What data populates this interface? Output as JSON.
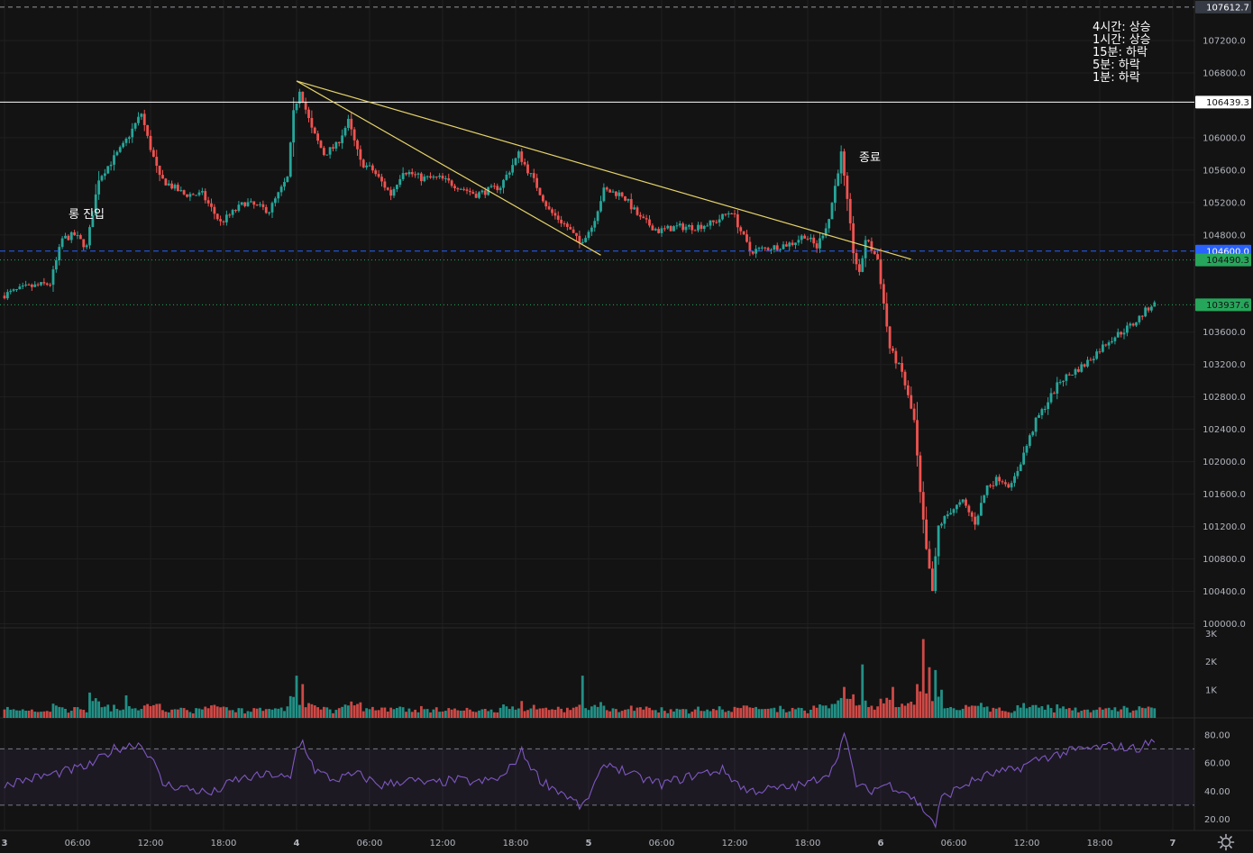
{
  "status_lines": [
    "4시간: 상승",
    "1시간: 상승",
    "15분: 하락",
    "5분: 하락",
    "1분: 하락"
  ],
  "annotations": {
    "entry": "롱 진입",
    "exit": "종료"
  },
  "colors": {
    "background": "#131313",
    "up": "#26a69a",
    "down": "#ef5350",
    "trendline": "#e6d36a",
    "rsi": "#7e57c2",
    "blue_label": "#2962ff",
    "green_label": "#26a65b"
  },
  "chart_data": {
    "type": "candlestick",
    "price_axis": {
      "ticks": [
        "107200.0",
        "106800.0",
        "106000.0",
        "105600.0",
        "105200.0",
        "104800.0",
        "103600.0",
        "103200.0",
        "102800.0",
        "102400.0",
        "102000.0",
        "101600.0",
        "101200.0",
        "100800.0",
        "100400.0",
        "100000.0"
      ],
      "ylim": [
        99950,
        107700
      ]
    },
    "time_axis": {
      "ticks": [
        "3",
        "06:00",
        "12:00",
        "18:00",
        "4",
        "06:00",
        "12:00",
        "18:00",
        "5",
        "06:00",
        "12:00",
        "18:00",
        "6",
        "06:00",
        "12:00",
        "18:00",
        "7"
      ]
    },
    "price_lines": [
      {
        "value": 107612.7,
        "label": "107612.7",
        "style": "dashed-grey"
      },
      {
        "value": 106439.3,
        "label": "106439.3",
        "style": "solid-white"
      },
      {
        "value": 104600.0,
        "label": "104600.0",
        "style": "dashed-blue"
      },
      {
        "value": 104490.3,
        "label": "104490.3",
        "style": "dotted-green"
      },
      {
        "value": 103937.6,
        "label": "103937.6",
        "style": "dotted-green"
      }
    ],
    "trendlines": [
      {
        "from": {
          "x": "4 00:00",
          "y": 106700
        },
        "to": {
          "x": "6 02:30",
          "y": 104500
        }
      },
      {
        "from": {
          "x": "4 00:00",
          "y": 106700
        },
        "to": {
          "x": "5 01:00",
          "y": 104550
        }
      }
    ],
    "price_path": [
      [
        "3 00:00",
        104050
      ],
      [
        "3 02:00",
        104150
      ],
      [
        "3 04:00",
        104200
      ],
      [
        "3 05:00",
        104750
      ],
      [
        "3 06:00",
        104800
      ],
      [
        "3 07:00",
        104650
      ],
      [
        "3 08:00",
        105500
      ],
      [
        "3 10:00",
        105900
      ],
      [
        "3 11:30",
        106300
      ],
      [
        "3 12:00",
        106000
      ],
      [
        "3 13:00",
        105500
      ],
      [
        "3 15:00",
        105300
      ],
      [
        "3 16:30",
        105300
      ],
      [
        "3 18:00",
        104950
      ],
      [
        "3 20:00",
        105200
      ],
      [
        "3 22:00",
        105100
      ],
      [
        "3 23:30",
        105500
      ],
      [
        "4 00:00",
        106300
      ],
      [
        "4 00:30",
        106600
      ],
      [
        "4 01:30",
        106100
      ],
      [
        "4 02:30",
        105800
      ],
      [
        "4 03:30",
        105900
      ],
      [
        "4 04:30",
        106200
      ],
      [
        "4 05:30",
        105700
      ],
      [
        "4 06:30",
        105600
      ],
      [
        "4 08:00",
        105300
      ],
      [
        "4 09:00",
        105600
      ],
      [
        "4 10:30",
        105500
      ],
      [
        "4 12:00",
        105500
      ],
      [
        "4 13:30",
        105400
      ],
      [
        "4 15:00",
        105300
      ],
      [
        "4 17:00",
        105400
      ],
      [
        "4 18:30",
        105800
      ],
      [
        "4 20:00",
        105400
      ],
      [
        "4 21:00",
        105100
      ],
      [
        "4 22:30",
        104900
      ],
      [
        "4 23:30",
        104700
      ],
      [
        "5 00:30",
        104900
      ],
      [
        "5 01:30",
        105350
      ],
      [
        "5 03:00",
        105300
      ],
      [
        "5 04:30",
        105000
      ],
      [
        "5 06:00",
        104850
      ],
      [
        "5 07:30",
        104900
      ],
      [
        "5 09:00",
        104900
      ],
      [
        "5 10:30",
        104950
      ],
      [
        "5 12:00",
        105100
      ],
      [
        "5 13:30",
        104600
      ],
      [
        "5 15:30",
        104650
      ],
      [
        "5 17:00",
        104700
      ],
      [
        "5 18:00",
        104800
      ],
      [
        "5 19:00",
        104650
      ],
      [
        "5 20:00",
        105000
      ],
      [
        "5 21:00",
        105800
      ],
      [
        "5 22:00",
        104600
      ],
      [
        "5 22:30",
        104300
      ],
      [
        "5 23:00",
        104750
      ],
      [
        "6 00:00",
        104500
      ],
      [
        "6 01:00",
        103400
      ],
      [
        "6 02:00",
        103100
      ],
      [
        "6 03:00",
        102500
      ],
      [
        "6 03:30",
        101600
      ],
      [
        "6 04:00",
        100900
      ],
      [
        "6 04:30",
        100400
      ],
      [
        "6 05:00",
        101200
      ],
      [
        "6 06:00",
        101400
      ],
      [
        "6 07:00",
        101500
      ],
      [
        "6 08:00",
        101250
      ],
      [
        "6 09:00",
        101700
      ],
      [
        "6 10:00",
        101800
      ],
      [
        "6 11:00",
        101700
      ],
      [
        "6 12:00",
        102100
      ],
      [
        "6 13:00",
        102500
      ],
      [
        "6 15:00",
        103000
      ],
      [
        "6 17:00",
        103200
      ],
      [
        "6 19:00",
        103500
      ],
      [
        "6 21:00",
        103700
      ],
      [
        "6 22:30",
        103940
      ]
    ],
    "volume_axis": {
      "ticks": [
        "3K",
        "2K",
        "1K"
      ],
      "ylim": [
        0,
        3200
      ]
    },
    "volume_spikes": [
      [
        "3 00:00",
        300
      ],
      [
        "3 07:00",
        900
      ],
      [
        "3 10:00",
        800
      ],
      [
        "3 18:00",
        400
      ],
      [
        "4 00:00",
        1500
      ],
      [
        "4 00:30",
        1200
      ],
      [
        "4 18:30",
        600
      ],
      [
        "4 23:30",
        1500
      ],
      [
        "5 21:00",
        1100
      ],
      [
        "5 22:30",
        1900
      ],
      [
        "6 01:00",
        1100
      ],
      [
        "6 03:00",
        1200
      ],
      [
        "6 03:30",
        2800
      ],
      [
        "6 04:00",
        1800
      ],
      [
        "6 04:30",
        1700
      ],
      [
        "6 05:00",
        1000
      ],
      [
        "6 22:00",
        400
      ]
    ],
    "rsi_axis": {
      "ticks": [
        "80.00",
        "60.00",
        "40.00",
        "20.00"
      ],
      "ylim": [
        12,
        92
      ],
      "bands": [
        70,
        30
      ]
    },
    "rsi_path": [
      [
        "3 00:00",
        45
      ],
      [
        "3 04:00",
        52
      ],
      [
        "3 07:00",
        58
      ],
      [
        "3 09:00",
        70
      ],
      [
        "3 11:00",
        74
      ],
      [
        "3 12:00",
        65
      ],
      [
        "3 13:00",
        45
      ],
      [
        "3 15:00",
        42
      ],
      [
        "3 17:00",
        38
      ],
      [
        "3 19:00",
        48
      ],
      [
        "3 22:00",
        52
      ],
      [
        "3 23:30",
        48
      ],
      [
        "4 00:00",
        70
      ],
      [
        "4 00:30",
        75
      ],
      [
        "4 01:30",
        55
      ],
      [
        "4 03:00",
        48
      ],
      [
        "4 05:00",
        52
      ],
      [
        "4 07:00",
        44
      ],
      [
        "4 09:00",
        48
      ],
      [
        "4 11:00",
        45
      ],
      [
        "4 13:00",
        48
      ],
      [
        "4 15:00",
        46
      ],
      [
        "4 17:00",
        50
      ],
      [
        "4 18:30",
        68
      ],
      [
        "4 20:00",
        48
      ],
      [
        "4 22:00",
        38
      ],
      [
        "4 23:30",
        28
      ],
      [
        "5 00:30",
        45
      ],
      [
        "5 01:30",
        60
      ],
      [
        "5 04:00",
        50
      ],
      [
        "5 06:00",
        45
      ],
      [
        "5 09:00",
        52
      ],
      [
        "5 11:00",
        55
      ],
      [
        "5 13:00",
        40
      ],
      [
        "5 16:00",
        42
      ],
      [
        "5 18:00",
        45
      ],
      [
        "5 20:00",
        55
      ],
      [
        "5 21:00",
        80
      ],
      [
        "5 22:00",
        45
      ],
      [
        "5 23:00",
        40
      ],
      [
        "6 00:30",
        45
      ],
      [
        "6 02:00",
        40
      ],
      [
        "6 03:00",
        32
      ],
      [
        "6 04:00",
        22
      ],
      [
        "6 04:30",
        16
      ],
      [
        "6 05:00",
        35
      ],
      [
        "6 07:00",
        45
      ],
      [
        "6 09:00",
        52
      ],
      [
        "6 11:00",
        55
      ],
      [
        "6 13:00",
        63
      ],
      [
        "6 16:00",
        69
      ],
      [
        "6 19:00",
        72
      ],
      [
        "6 21:00",
        70
      ],
      [
        "6 22:30",
        76
      ]
    ]
  }
}
